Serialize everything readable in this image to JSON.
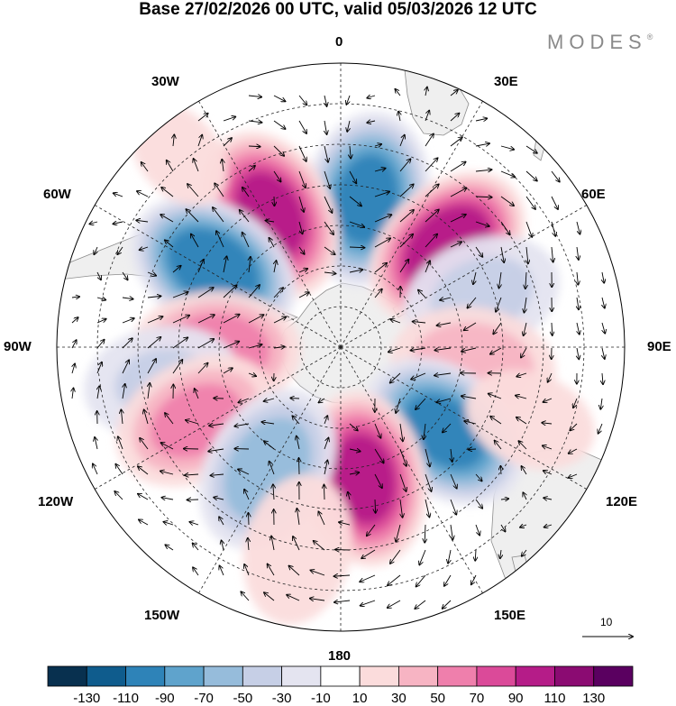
{
  "title": "Base 27/02/2026 00 UTC, valid 05/03/2026 12 UTC",
  "brand": {
    "name": "MODES",
    "mark": "®"
  },
  "longitude_labels": {
    "lon_0": "0",
    "lon_30e": "30E",
    "lon_60e": "60E",
    "lon_90e": "90E",
    "lon_120e": "120E",
    "lon_150e": "150E",
    "lon_180": "180",
    "lon_150w": "150W",
    "lon_120w": "120W",
    "lon_90w": "90W",
    "lon_60w": "60W",
    "lon_30w": "30W"
  },
  "vector_scale": {
    "value": "10"
  },
  "colorbar": {
    "labels": [
      "-130",
      "-110",
      "-90",
      "-70",
      "-50",
      "-30",
      "-10",
      "10",
      "30",
      "50",
      "70",
      "90",
      "110",
      "130"
    ],
    "colors": [
      "#08304f",
      "#0f5c8d",
      "#2e83b8",
      "#5fa3cc",
      "#96bcdb",
      "#c6cfe6",
      "#e4e4f0",
      "#ffffff",
      "#fbdcdc",
      "#f7b4c3",
      "#ef7fac",
      "#db4a99",
      "#b51c88",
      "#8b0b72",
      "#5a0060"
    ]
  },
  "anomaly_centers": [
    {
      "lon_deg": 10,
      "colat_deg": 37,
      "value": -100
    },
    {
      "lon_deg": -28,
      "colat_deg": 37,
      "value": 100
    },
    {
      "lon_deg": 47,
      "colat_deg": 36,
      "value": 110
    },
    {
      "lon_deg": -58,
      "colat_deg": 37,
      "value": -110
    },
    {
      "lon_deg": 70,
      "colat_deg": 37,
      "value": -40
    },
    {
      "lon_deg": 98,
      "colat_deg": 33,
      "value": 50
    },
    {
      "lon_deg": -92,
      "colat_deg": 31,
      "value": 70
    },
    {
      "lon_deg": -101,
      "colat_deg": 45,
      "value": -35
    },
    {
      "lon_deg": 129,
      "colat_deg": 33,
      "value": -100
    },
    {
      "lon_deg": -117,
      "colat_deg": 40,
      "value": 60
    },
    {
      "lon_deg": 170,
      "colat_deg": 33,
      "value": 100
    },
    {
      "lon_deg": -149,
      "colat_deg": 35,
      "value": -70
    },
    {
      "lon_deg": -168,
      "colat_deg": 51,
      "value": 30
    },
    {
      "lon_deg": 111,
      "colat_deg": 50,
      "value": 20
    },
    {
      "lon_deg": -40,
      "colat_deg": 62,
      "value": 15
    }
  ]
}
